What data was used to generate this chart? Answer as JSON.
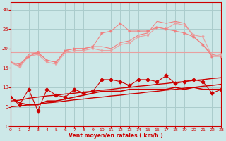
{
  "x": [
    0,
    1,
    2,
    3,
    4,
    5,
    6,
    7,
    8,
    9,
    10,
    11,
    12,
    13,
    14,
    15,
    16,
    17,
    18,
    19,
    20,
    21,
    22,
    23
  ],
  "line_pink_upper": [
    16.5,
    15.5,
    18.5,
    19.0,
    17.0,
    16.5,
    19.5,
    20.0,
    20.0,
    20.5,
    20.5,
    20.0,
    21.5,
    22.0,
    23.5,
    24.0,
    27.0,
    26.5,
    27.0,
    26.5,
    23.0,
    21.0,
    18.5,
    18.0
  ],
  "line_pink_lower_flat": [
    16.5,
    15.2,
    18.0,
    18.5,
    16.5,
    16.0,
    19.0,
    19.5,
    19.5,
    20.0,
    19.5,
    19.5,
    21.0,
    21.5,
    23.0,
    23.5,
    25.5,
    25.0,
    26.5,
    26.0,
    23.5,
    23.0,
    18.0,
    18.5
  ],
  "line_pink_trend_upper": [
    16.5,
    16.0,
    18.0,
    19.0,
    17.0,
    16.5,
    19.5,
    20.0,
    20.0,
    20.5,
    24.0,
    24.5,
    26.5,
    24.5,
    24.5,
    24.5,
    25.5,
    25.0,
    24.5,
    24.0,
    23.0,
    21.0,
    18.0,
    18.0
  ],
  "line_pink_flat": [
    19.0,
    19.0,
    19.0,
    19.0,
    19.0,
    19.0,
    19.0,
    19.0,
    19.0,
    19.0,
    19.0,
    19.0,
    19.0,
    19.0,
    19.0,
    19.0,
    19.0,
    19.0,
    19.0,
    19.0,
    19.0,
    19.0,
    19.0,
    19.0
  ],
  "line_red_markers": [
    7.5,
    5.5,
    9.5,
    4.0,
    9.5,
    8.0,
    7.5,
    9.5,
    8.5,
    9.0,
    12.0,
    12.0,
    11.5,
    10.5,
    12.0,
    12.0,
    11.5,
    13.0,
    11.0,
    11.5,
    12.0,
    11.5,
    8.5,
    9.5
  ],
  "line_red_trend_upper": [
    6.5,
    6.7,
    7.2,
    7.5,
    7.8,
    8.0,
    8.3,
    8.5,
    8.8,
    9.0,
    9.3,
    9.5,
    9.8,
    10.0,
    10.3,
    10.5,
    10.8,
    11.0,
    11.3,
    11.5,
    11.8,
    12.0,
    12.3,
    12.5
  ],
  "line_red_trend_lower": [
    5.0,
    5.2,
    5.5,
    5.7,
    6.0,
    6.2,
    6.5,
    6.8,
    7.0,
    7.3,
    7.5,
    7.8,
    8.0,
    8.3,
    8.5,
    8.8,
    9.0,
    9.3,
    9.5,
    9.8,
    10.0,
    10.3,
    10.5,
    10.8
  ],
  "line_red_flat": [
    7.5,
    6.0,
    5.5,
    5.5,
    6.5,
    6.5,
    7.0,
    7.5,
    8.0,
    8.5,
    9.0,
    9.0,
    9.0,
    9.5,
    9.5,
    9.5,
    9.5,
    9.5,
    10.0,
    9.5,
    10.0,
    9.5,
    9.5,
    9.5
  ],
  "bg_color": "#cce8e8",
  "grid_color": "#aacccc",
  "light_red": "#f08080",
  "salmon": "#e8a0a0",
  "dark_red": "#cc0000",
  "xlabel": "Vent moyen/en rafales ( km/h )",
  "ylim": [
    0,
    32
  ],
  "xlim": [
    0,
    23
  ],
  "yticks": [
    0,
    5,
    10,
    15,
    20,
    25,
    30
  ],
  "xticks": [
    0,
    1,
    2,
    3,
    4,
    5,
    6,
    7,
    8,
    9,
    10,
    11,
    12,
    13,
    14,
    15,
    16,
    17,
    18,
    19,
    20,
    21,
    22,
    23
  ]
}
